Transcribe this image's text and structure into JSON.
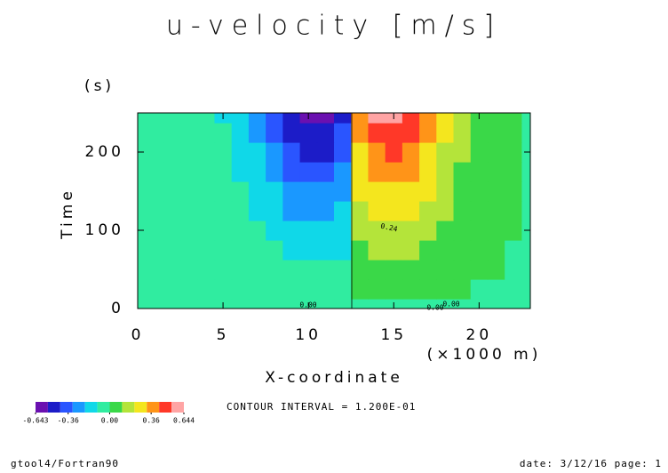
{
  "chart_data": {
    "type": "contour",
    "title": "u-velocity [m/s]",
    "x_label": "X-coordinate",
    "x_unit": "(×1000 m)",
    "y_label": "Time",
    "y_unit": "(s)",
    "xlim": [
      0,
      23
    ],
    "ylim": [
      0,
      250
    ],
    "xticks": [
      0,
      5,
      10,
      15,
      20
    ],
    "yticks": [
      0,
      100,
      200
    ],
    "x": [
      0,
      1,
      2,
      3,
      4,
      5,
      6,
      7,
      8,
      9,
      10,
      11,
      12,
      13,
      14,
      15,
      16,
      17,
      18,
      19,
      20,
      21,
      22,
      23
    ],
    "y": [
      0,
      25,
      50,
      75,
      100,
      125,
      150,
      175,
      200,
      225,
      250
    ],
    "z": [
      [
        0,
        0,
        0,
        0,
        0,
        0,
        0,
        0,
        0,
        0,
        0,
        0,
        0,
        0,
        0,
        0,
        0,
        0,
        0,
        0,
        0,
        0,
        0,
        0
      ],
      [
        0,
        0,
        0,
        0,
        0,
        -0.01,
        -0.01,
        -0.01,
        -0.02,
        -0.03,
        -0.03,
        -0.03,
        -0.02,
        0.02,
        0.03,
        0.03,
        0.03,
        0.02,
        0.01,
        0.01,
        0,
        0,
        0,
        0
      ],
      [
        0,
        0,
        0,
        -0.01,
        -0.01,
        -0.02,
        -0.03,
        -0.05,
        -0.07,
        -0.09,
        -0.1,
        -0.1,
        -0.08,
        0.07,
        0.1,
        0.1,
        0.09,
        0.07,
        0.05,
        0.03,
        0.02,
        0.01,
        0,
        0
      ],
      [
        0,
        0,
        0,
        -0.01,
        -0.02,
        -0.03,
        -0.05,
        -0.07,
        -0.1,
        -0.14,
        -0.16,
        -0.15,
        -0.13,
        0.11,
        0.15,
        0.16,
        0.14,
        0.11,
        0.07,
        0.04,
        0.02,
        0.01,
        0,
        0
      ],
      [
        0,
        0,
        0,
        -0.01,
        -0.02,
        -0.04,
        -0.07,
        -0.1,
        -0.14,
        -0.19,
        -0.22,
        -0.21,
        -0.18,
        0.15,
        0.21,
        0.22,
        0.2,
        0.15,
        0.1,
        0.06,
        0.03,
        0.02,
        0.01,
        0
      ],
      [
        0,
        0,
        -0.01,
        -0.01,
        -0.03,
        -0.05,
        -0.08,
        -0.13,
        -0.18,
        -0.24,
        -0.28,
        -0.27,
        -0.22,
        0.2,
        0.27,
        0.28,
        0.25,
        0.2,
        0.13,
        0.08,
        0.04,
        0.02,
        0.01,
        0
      ],
      [
        0,
        0,
        -0.01,
        -0.02,
        -0.04,
        -0.06,
        -0.11,
        -0.16,
        -0.23,
        -0.3,
        -0.35,
        -0.33,
        -0.28,
        0.25,
        0.33,
        0.35,
        0.32,
        0.25,
        0.16,
        0.1,
        0.05,
        0.02,
        0.01,
        0
      ],
      [
        0,
        0,
        -0.01,
        -0.02,
        -0.04,
        -0.08,
        -0.13,
        -0.19,
        -0.27,
        -0.36,
        -0.42,
        -0.4,
        -0.34,
        0.29,
        0.4,
        0.42,
        0.38,
        0.29,
        0.19,
        0.12,
        0.06,
        0.03,
        0.01,
        0
      ],
      [
        0,
        0,
        -0.01,
        -0.03,
        -0.05,
        -0.09,
        -0.15,
        -0.23,
        -0.33,
        -0.43,
        -0.5,
        -0.48,
        -0.4,
        0.35,
        0.48,
        0.5,
        0.45,
        0.35,
        0.23,
        0.14,
        0.08,
        0.04,
        0.02,
        0
      ],
      [
        0,
        0,
        -0.01,
        -0.03,
        -0.06,
        -0.1,
        -0.17,
        -0.26,
        -0.38,
        -0.49,
        -0.58,
        -0.55,
        -0.46,
        0.41,
        0.55,
        0.58,
        0.52,
        0.41,
        0.26,
        0.16,
        0.09,
        0.04,
        0.02,
        0
      ],
      [
        0,
        0,
        -0.01,
        -0.03,
        -0.06,
        -0.12,
        -0.19,
        -0.29,
        -0.42,
        -0.54,
        -0.64,
        -0.61,
        -0.51,
        0.45,
        0.61,
        0.64,
        0.58,
        0.45,
        0.29,
        0.18,
        0.1,
        0.04,
        0.02,
        0
      ]
    ],
    "levels": [
      -0.643,
      -0.6,
      -0.48,
      -0.36,
      -0.24,
      -0.12,
      0,
      0.12,
      0.24,
      0.36,
      0.48,
      0.6,
      0.644
    ],
    "colors": [
      "#6a10b0",
      "#1c1cc8",
      "#2a55ff",
      "#1a98ff",
      "#10d8e8",
      "#30eca0",
      "#3ad848",
      "#b4e43a",
      "#f4e61e",
      "#ff9418",
      "#ff3828",
      "#ffa4a4"
    ],
    "colorbar_ticks": [
      -0.643,
      -0.36,
      {
        "value": 0,
        "label": "0.00"
      },
      0.36,
      0.644
    ],
    "contour_labels": [
      "0.00",
      "0.24",
      "0.00",
      "0.00"
    ],
    "contour_interval_text": "CONTOUR INTERVAL = 1.200E-01",
    "footer_left": "gtool4/Fortran90",
    "footer_right": "date: 3/12/16 page: 1"
  }
}
